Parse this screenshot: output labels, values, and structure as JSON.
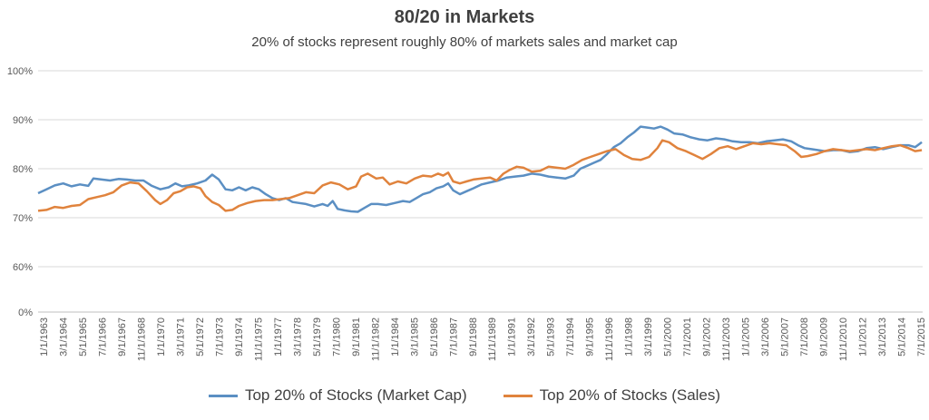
{
  "chart_data": {
    "type": "line",
    "title": "80/20 in Markets",
    "subtitle": "20% of stocks represent roughly 80% of markets sales and market cap",
    "ylim": [
      0,
      100
    ],
    "y_ticks": [
      "0%",
      "60%",
      "70%",
      "80%",
      "90%",
      "100%"
    ],
    "grid": true,
    "legend_position": "bottom",
    "x_tick_labels": [
      "1/1/1963",
      "3/1/1964",
      "5/1/1965",
      "7/1/1966",
      "9/1/1967",
      "11/1/1968",
      "1/1/1970",
      "3/1/1971",
      "5/1/1972",
      "7/1/1973",
      "9/1/1974",
      "11/1/1975",
      "1/1/1977",
      "3/1/1978",
      "5/1/1979",
      "7/1/1980",
      "9/1/1981",
      "11/1/1982",
      "1/1/1984",
      "3/1/1985",
      "5/1/1986",
      "7/1/1987",
      "9/1/1988",
      "11/1/1989",
      "1/1/1991",
      "3/1/1992",
      "5/1/1993",
      "7/1/1994",
      "9/1/1995",
      "11/1/1996",
      "1/1/1998",
      "3/1/1999",
      "5/1/2000",
      "7/1/2001",
      "9/1/2002",
      "11/1/2003",
      "1/1/2005",
      "3/1/2006",
      "5/1/2007",
      "7/1/2008",
      "9/1/2009",
      "11/1/2010",
      "1/1/2012",
      "3/1/2013",
      "5/1/2014",
      "7/1/2015"
    ],
    "series": [
      {
        "name": "Top 20% of Stocks (Market Cap)",
        "color": "#5B8FC3",
        "points": [
          [
            1963.0,
            75.0
          ],
          [
            1963.5,
            75.8
          ],
          [
            1964.0,
            76.6
          ],
          [
            1964.5,
            77.0
          ],
          [
            1965.0,
            76.4
          ],
          [
            1965.5,
            76.8
          ],
          [
            1966.0,
            76.5
          ],
          [
            1966.3,
            78.0
          ],
          [
            1966.8,
            77.8
          ],
          [
            1967.3,
            77.6
          ],
          [
            1967.8,
            77.9
          ],
          [
            1968.3,
            77.8
          ],
          [
            1968.8,
            77.6
          ],
          [
            1969.3,
            77.6
          ],
          [
            1969.8,
            76.5
          ],
          [
            1970.3,
            75.8
          ],
          [
            1970.8,
            76.2
          ],
          [
            1971.2,
            77.0
          ],
          [
            1971.6,
            76.4
          ],
          [
            1972.0,
            76.6
          ],
          [
            1972.5,
            77.0
          ],
          [
            1973.0,
            77.6
          ],
          [
            1973.4,
            78.8
          ],
          [
            1973.8,
            77.8
          ],
          [
            1974.2,
            75.8
          ],
          [
            1974.6,
            75.6
          ],
          [
            1975.0,
            76.2
          ],
          [
            1975.4,
            75.6
          ],
          [
            1975.8,
            76.2
          ],
          [
            1976.2,
            75.8
          ],
          [
            1976.6,
            74.8
          ],
          [
            1977.0,
            74.0
          ],
          [
            1977.4,
            73.6
          ],
          [
            1977.8,
            74.0
          ],
          [
            1978.2,
            73.2
          ],
          [
            1978.6,
            73.0
          ],
          [
            1979.0,
            72.8
          ],
          [
            1979.5,
            72.3
          ],
          [
            1980.0,
            72.8
          ],
          [
            1980.3,
            72.4
          ],
          [
            1980.6,
            73.4
          ],
          [
            1980.9,
            71.8
          ],
          [
            1981.3,
            71.5
          ],
          [
            1981.7,
            71.3
          ],
          [
            1982.1,
            71.2
          ],
          [
            1982.5,
            72.0
          ],
          [
            1982.9,
            72.8
          ],
          [
            1983.3,
            72.8
          ],
          [
            1983.8,
            72.6
          ],
          [
            1984.3,
            73.0
          ],
          [
            1984.8,
            73.4
          ],
          [
            1985.2,
            73.2
          ],
          [
            1985.6,
            74.0
          ],
          [
            1986.0,
            74.8
          ],
          [
            1986.4,
            75.2
          ],
          [
            1986.8,
            76.0
          ],
          [
            1987.2,
            76.4
          ],
          [
            1987.5,
            77.0
          ],
          [
            1987.8,
            75.6
          ],
          [
            1988.2,
            74.8
          ],
          [
            1988.6,
            75.4
          ],
          [
            1989.0,
            76.0
          ],
          [
            1989.5,
            76.8
          ],
          [
            1990.0,
            77.2
          ],
          [
            1990.5,
            77.6
          ],
          [
            1991.0,
            78.2
          ],
          [
            1991.5,
            78.4
          ],
          [
            1992.0,
            78.6
          ],
          [
            1992.5,
            79.0
          ],
          [
            1993.0,
            78.8
          ],
          [
            1993.5,
            78.4
          ],
          [
            1994.0,
            78.2
          ],
          [
            1994.5,
            78.0
          ],
          [
            1995.0,
            78.6
          ],
          [
            1995.4,
            80.0
          ],
          [
            1995.8,
            80.6
          ],
          [
            1996.2,
            81.2
          ],
          [
            1996.6,
            81.8
          ],
          [
            1997.0,
            83.0
          ],
          [
            1997.4,
            84.4
          ],
          [
            1997.8,
            85.2
          ],
          [
            1998.2,
            86.4
          ],
          [
            1998.6,
            87.4
          ],
          [
            1999.0,
            88.6
          ],
          [
            1999.4,
            88.4
          ],
          [
            1999.8,
            88.2
          ],
          [
            2000.2,
            88.6
          ],
          [
            2000.6,
            88.0
          ],
          [
            2001.0,
            87.2
          ],
          [
            2001.5,
            87.0
          ],
          [
            2002.0,
            86.4
          ],
          [
            2002.5,
            86.0
          ],
          [
            2003.0,
            85.8
          ],
          [
            2003.5,
            86.2
          ],
          [
            2004.0,
            86.0
          ],
          [
            2004.5,
            85.6
          ],
          [
            2005.0,
            85.4
          ],
          [
            2005.5,
            85.4
          ],
          [
            2006.0,
            85.2
          ],
          [
            2006.5,
            85.6
          ],
          [
            2007.0,
            85.8
          ],
          [
            2007.5,
            86.0
          ],
          [
            2008.0,
            85.6
          ],
          [
            2008.4,
            84.8
          ],
          [
            2008.8,
            84.2
          ],
          [
            2009.2,
            84.0
          ],
          [
            2009.6,
            83.8
          ],
          [
            2010.0,
            83.6
          ],
          [
            2010.5,
            83.8
          ],
          [
            2011.0,
            83.8
          ],
          [
            2011.5,
            83.4
          ],
          [
            2012.0,
            83.6
          ],
          [
            2012.5,
            84.2
          ],
          [
            2013.0,
            84.4
          ],
          [
            2013.5,
            84.0
          ],
          [
            2014.0,
            84.4
          ],
          [
            2014.5,
            84.8
          ],
          [
            2015.0,
            84.8
          ],
          [
            2015.4,
            84.4
          ],
          [
            2015.8,
            85.4
          ]
        ]
      },
      {
        "name": "Top 20% of Stocks (Sales)",
        "color": "#E0833D",
        "points": [
          [
            1963.0,
            71.4
          ],
          [
            1963.5,
            71.6
          ],
          [
            1964.0,
            72.2
          ],
          [
            1964.5,
            72.0
          ],
          [
            1965.0,
            72.4
          ],
          [
            1965.5,
            72.6
          ],
          [
            1966.0,
            73.8
          ],
          [
            1966.5,
            74.2
          ],
          [
            1967.0,
            74.6
          ],
          [
            1967.5,
            75.2
          ],
          [
            1968.0,
            76.6
          ],
          [
            1968.5,
            77.2
          ],
          [
            1969.0,
            77.0
          ],
          [
            1969.5,
            75.4
          ],
          [
            1970.0,
            73.6
          ],
          [
            1970.3,
            72.8
          ],
          [
            1970.7,
            73.6
          ],
          [
            1971.1,
            75.0
          ],
          [
            1971.5,
            75.4
          ],
          [
            1971.9,
            76.2
          ],
          [
            1972.3,
            76.4
          ],
          [
            1972.7,
            76.0
          ],
          [
            1973.0,
            74.4
          ],
          [
            1973.4,
            73.2
          ],
          [
            1973.8,
            72.6
          ],
          [
            1974.2,
            71.4
          ],
          [
            1974.6,
            71.6
          ],
          [
            1975.0,
            72.4
          ],
          [
            1975.5,
            73.0
          ],
          [
            1976.0,
            73.4
          ],
          [
            1976.5,
            73.6
          ],
          [
            1977.0,
            73.6
          ],
          [
            1977.5,
            73.8
          ],
          [
            1978.0,
            74.0
          ],
          [
            1978.5,
            74.6
          ],
          [
            1979.0,
            75.2
          ],
          [
            1979.5,
            75.0
          ],
          [
            1980.0,
            76.6
          ],
          [
            1980.5,
            77.2
          ],
          [
            1981.0,
            76.8
          ],
          [
            1981.5,
            75.8
          ],
          [
            1982.0,
            76.4
          ],
          [
            1982.3,
            78.4
          ],
          [
            1982.7,
            79.0
          ],
          [
            1983.2,
            78.0
          ],
          [
            1983.6,
            78.2
          ],
          [
            1984.0,
            76.8
          ],
          [
            1984.5,
            77.4
          ],
          [
            1985.0,
            77.0
          ],
          [
            1985.5,
            78.0
          ],
          [
            1986.0,
            78.6
          ],
          [
            1986.5,
            78.4
          ],
          [
            1986.9,
            79.0
          ],
          [
            1987.2,
            78.6
          ],
          [
            1987.5,
            79.2
          ],
          [
            1987.8,
            77.4
          ],
          [
            1988.2,
            77.0
          ],
          [
            1988.6,
            77.4
          ],
          [
            1989.0,
            77.8
          ],
          [
            1989.5,
            78.0
          ],
          [
            1990.0,
            78.2
          ],
          [
            1990.4,
            77.6
          ],
          [
            1990.8,
            79.0
          ],
          [
            1991.2,
            79.8
          ],
          [
            1991.6,
            80.4
          ],
          [
            1992.0,
            80.2
          ],
          [
            1992.5,
            79.4
          ],
          [
            1993.0,
            79.6
          ],
          [
            1993.5,
            80.4
          ],
          [
            1994.0,
            80.2
          ],
          [
            1994.5,
            80.0
          ],
          [
            1995.0,
            80.8
          ],
          [
            1995.5,
            81.8
          ],
          [
            1996.0,
            82.4
          ],
          [
            1996.5,
            83.0
          ],
          [
            1997.0,
            83.6
          ],
          [
            1997.5,
            84.0
          ],
          [
            1998.0,
            82.8
          ],
          [
            1998.5,
            82.0
          ],
          [
            1999.0,
            81.8
          ],
          [
            1999.5,
            82.4
          ],
          [
            2000.0,
            84.2
          ],
          [
            2000.3,
            85.8
          ],
          [
            2000.7,
            85.4
          ],
          [
            2001.2,
            84.2
          ],
          [
            2001.7,
            83.6
          ],
          [
            2002.2,
            82.8
          ],
          [
            2002.7,
            82.0
          ],
          [
            2003.2,
            83.0
          ],
          [
            2003.7,
            84.2
          ],
          [
            2004.2,
            84.6
          ],
          [
            2004.7,
            84.0
          ],
          [
            2005.2,
            84.6
          ],
          [
            2005.7,
            85.2
          ],
          [
            2006.2,
            85.0
          ],
          [
            2006.7,
            85.2
          ],
          [
            2007.2,
            85.0
          ],
          [
            2007.7,
            84.8
          ],
          [
            2008.2,
            83.6
          ],
          [
            2008.6,
            82.4
          ],
          [
            2009.0,
            82.6
          ],
          [
            2009.5,
            83.0
          ],
          [
            2010.0,
            83.6
          ],
          [
            2010.5,
            84.0
          ],
          [
            2011.0,
            83.8
          ],
          [
            2011.5,
            83.6
          ],
          [
            2012.0,
            83.8
          ],
          [
            2012.5,
            84.0
          ],
          [
            2013.0,
            83.8
          ],
          [
            2013.5,
            84.2
          ],
          [
            2014.0,
            84.6
          ],
          [
            2014.5,
            84.8
          ],
          [
            2015.0,
            84.2
          ],
          [
            2015.4,
            83.6
          ],
          [
            2015.8,
            83.8
          ]
        ]
      }
    ]
  }
}
